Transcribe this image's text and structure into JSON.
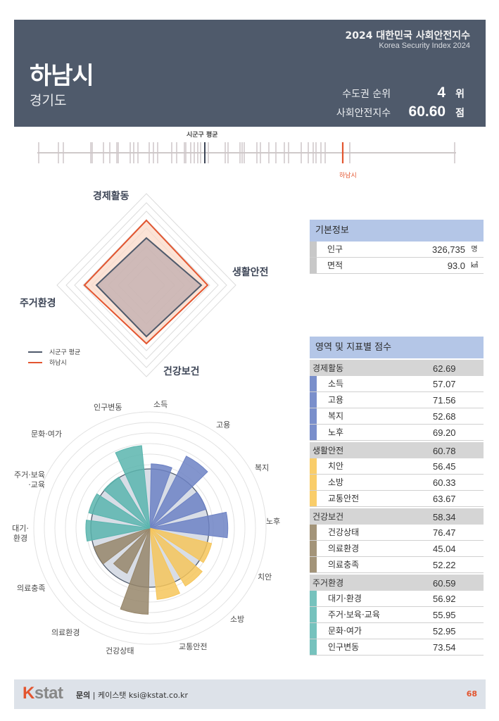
{
  "header": {
    "title": "2024 대한민국 사회안전지수",
    "subtitle": "Korea Security Index 2024",
    "city": "하남시",
    "province": "경기도",
    "rank_label": "수도권 순위",
    "rank_value": "4",
    "rank_unit": "위",
    "index_label": "사회안전지수",
    "index_value": "60.60",
    "index_unit": "점"
  },
  "strip": {
    "avg_label": "시군구 평균",
    "city_label": "하남시"
  },
  "radar": {
    "axes": [
      "경제활동",
      "생활안전",
      "건강보건",
      "주거환경"
    ],
    "legend": [
      "시군구 평균",
      "하남시"
    ]
  },
  "basic_info": {
    "title": "기본정보",
    "rows": [
      {
        "label": "인구",
        "value": "326,735",
        "unit": "명"
      },
      {
        "label": "면적",
        "value": "93.0",
        "unit": "㎢"
      }
    ]
  },
  "scores": {
    "title": "영역 및 지표별 점수",
    "categories": [
      {
        "name": "경제활동",
        "score": "62.69",
        "color": "#7a8fcb",
        "items": [
          {
            "name": "소득",
            "score": "57.07"
          },
          {
            "name": "고용",
            "score": "71.56"
          },
          {
            "name": "복지",
            "score": "52.68"
          },
          {
            "name": "노후",
            "score": "69.20"
          }
        ]
      },
      {
        "name": "생활안전",
        "score": "60.78",
        "color": "#f9cd6a",
        "items": [
          {
            "name": "치안",
            "score": "56.45"
          },
          {
            "name": "소방",
            "score": "60.33"
          },
          {
            "name": "교통안전",
            "score": "63.67"
          }
        ]
      },
      {
        "name": "건강보건",
        "score": "58.34",
        "color": "#a39479",
        "items": [
          {
            "name": "건강상태",
            "score": "76.47"
          },
          {
            "name": "의료환경",
            "score": "45.04"
          },
          {
            "name": "의료충족",
            "score": "52.22"
          }
        ]
      },
      {
        "name": "주거환경",
        "score": "60.59",
        "color": "#76c2bd",
        "items": [
          {
            "name": "대기·환경",
            "score": "56.92"
          },
          {
            "name": "주거·보육·교육",
            "score": "55.95"
          },
          {
            "name": "문화·여가",
            "score": "52.95"
          },
          {
            "name": "인구변동",
            "score": "73.54"
          }
        ]
      }
    ]
  },
  "footer": {
    "logo_k": "K",
    "logo_rest": "stat",
    "contact_label": "문의",
    "contact_text": " | 케이스탯 ksi@kstat.co.kr",
    "page": "68"
  },
  "chart_data": [
    {
      "type": "radar",
      "title": "",
      "categories": [
        "경제활동",
        "생활안전",
        "건강보건",
        "주거환경"
      ],
      "series": [
        {
          "name": "시군구 평균",
          "values": [
            50,
            50,
            50,
            50
          ],
          "color": "#4f5a6b"
        },
        {
          "name": "하남시",
          "values": [
            62.69,
            60.78,
            58.34,
            60.59
          ],
          "color": "#e3552f"
        }
      ]
    },
    {
      "type": "polar-bar",
      "title": "",
      "categories": [
        "소득",
        "고용",
        "복지",
        "노후",
        "치안",
        "소방",
        "교통안전",
        "건강상태",
        "의료환경",
        "의료충족",
        "대기·환경",
        "주거·보육·교육",
        "문화·여가",
        "인구변동"
      ],
      "values": [
        57.07,
        71.56,
        52.68,
        69.2,
        56.45,
        60.33,
        63.67,
        76.47,
        45.04,
        52.22,
        56.92,
        55.95,
        52.95,
        73.54
      ],
      "average": [
        50,
        50,
        50,
        50,
        50,
        50,
        50,
        50,
        50,
        50,
        50,
        50,
        50,
        50
      ],
      "colors": [
        "#6d82c4",
        "#6d82c4",
        "#6d82c4",
        "#6d82c4",
        "#f6c55a",
        "#f6c55a",
        "#f6c55a",
        "#97866a",
        "#97866a",
        "#97866a",
        "#5ab5ae",
        "#5ab5ae",
        "#5ab5ae",
        "#5ab5ae"
      ]
    },
    {
      "type": "strip",
      "title": "시군구 사회안전지수 분포",
      "highlight": {
        "name": "하남시",
        "value": 60.6
      },
      "average_marker": "시군구 평균"
    }
  ]
}
